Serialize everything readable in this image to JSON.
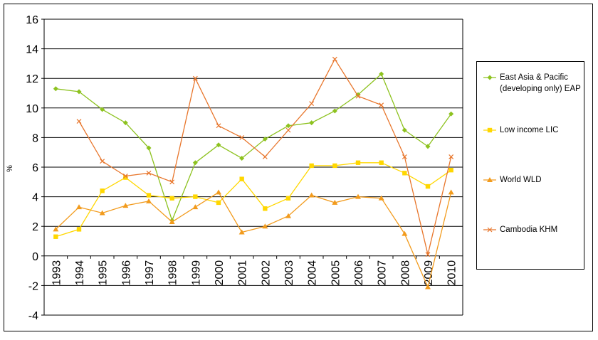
{
  "chart_data": {
    "type": "line",
    "title": "",
    "xlabel": "",
    "ylabel": "%",
    "ylim": [
      -4,
      16
    ],
    "yticks": [
      -4,
      -2,
      0,
      2,
      4,
      6,
      8,
      10,
      12,
      14,
      16
    ],
    "grid": "horizontal",
    "legend_position": "right",
    "categories": [
      "1993",
      "1994",
      "1995",
      "1996",
      "1997",
      "1998",
      "1999",
      "2000",
      "2001",
      "2002",
      "2003",
      "2004",
      "2005",
      "2006",
      "2007",
      "2008",
      "2009",
      "2010"
    ],
    "series": [
      {
        "name": "East Asia & Pacific (developing only) EAP",
        "color": "#8DC21F",
        "marker": "diamond",
        "values": [
          11.3,
          11.1,
          9.9,
          9.0,
          7.3,
          2.4,
          6.3,
          7.5,
          6.6,
          7.9,
          8.8,
          9.0,
          9.8,
          10.9,
          12.3,
          8.5,
          7.4,
          9.6
        ]
      },
      {
        "name": "Low income LIC",
        "color": "#FFD700",
        "marker": "square",
        "values": [
          1.3,
          1.8,
          4.4,
          5.3,
          4.1,
          3.9,
          4.0,
          3.6,
          5.2,
          3.2,
          3.9,
          6.1,
          6.1,
          6.3,
          6.3,
          5.6,
          4.7,
          5.8
        ]
      },
      {
        "name": "World WLD",
        "color": "#F29B1D",
        "marker": "triangle",
        "values": [
          1.8,
          3.3,
          2.9,
          3.4,
          3.7,
          2.3,
          3.3,
          4.3,
          1.6,
          2.0,
          2.7,
          4.1,
          3.6,
          4.0,
          3.9,
          1.5,
          -2.1,
          4.3
        ]
      },
      {
        "name": "Cambodia KHM",
        "color": "#E8762C",
        "marker": "x",
        "values": [
          null,
          9.1,
          6.4,
          5.4,
          5.6,
          5.0,
          12.0,
          8.8,
          8.0,
          6.7,
          8.5,
          10.3,
          13.3,
          10.8,
          10.2,
          6.7,
          0.1,
          6.7
        ]
      }
    ]
  }
}
